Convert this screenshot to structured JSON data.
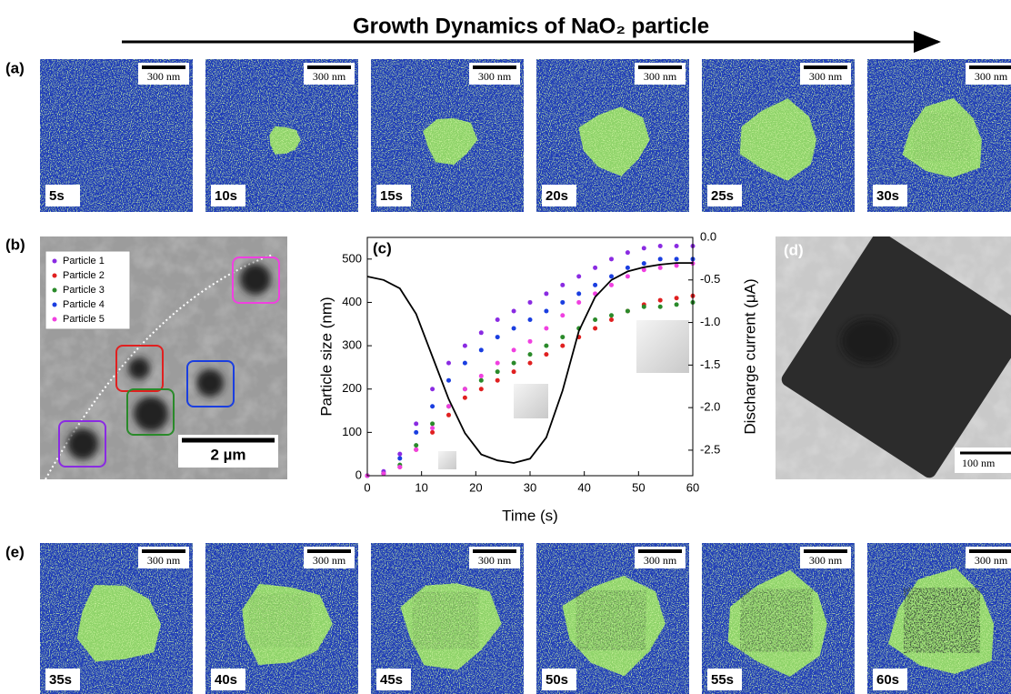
{
  "title": "Growth Dynamics of NaO₂ particle",
  "panels": {
    "a": {
      "label": "(a)",
      "frames": [
        {
          "time": "5s",
          "scale": "300 nm"
        },
        {
          "time": "10s",
          "scale": "300 nm"
        },
        {
          "time": "15s",
          "scale": "300 nm"
        },
        {
          "time": "20s",
          "scale": "300 nm"
        },
        {
          "time": "25s",
          "scale": "300 nm"
        },
        {
          "time": "30s",
          "scale": "300 nm"
        }
      ]
    },
    "b": {
      "label": "(b)",
      "scale": "2 µm"
    },
    "c": {
      "label": "(c)"
    },
    "d": {
      "label": "(d)",
      "scale": "100 nm"
    },
    "e": {
      "label": "(e)",
      "frames": [
        {
          "time": "35s",
          "scale": "300 nm"
        },
        {
          "time": "40s",
          "scale": "300 nm"
        },
        {
          "time": "45s",
          "scale": "300 nm"
        },
        {
          "time": "50s",
          "scale": "300 nm"
        },
        {
          "time": "55s",
          "scale": "300 nm"
        },
        {
          "time": "60s",
          "scale": "300 nm"
        }
      ]
    }
  },
  "chart_data": {
    "type": "scatter",
    "x_label": "Time (s)",
    "y_label": "Particle size (nm)",
    "y2_label": "Discharge current (μA)",
    "x": [
      0,
      3,
      6,
      9,
      12,
      15,
      18,
      21,
      24,
      27,
      30,
      33,
      36,
      39,
      42,
      45,
      48,
      51,
      54,
      57,
      60
    ],
    "series": [
      {
        "name": "Particle 1",
        "color": "#8a2be2",
        "values": [
          0,
          10,
          50,
          120,
          200,
          260,
          300,
          330,
          360,
          380,
          400,
          420,
          440,
          460,
          480,
          500,
          515,
          525,
          530,
          530,
          530
        ]
      },
      {
        "name": "Particle 2",
        "color": "#e02020",
        "values": [
          0,
          5,
          20,
          60,
          100,
          140,
          180,
          200,
          220,
          240,
          260,
          280,
          300,
          320,
          340,
          360,
          380,
          395,
          405,
          410,
          415
        ]
      },
      {
        "name": "Particle 3",
        "color": "#2a8a2a",
        "values": [
          0,
          5,
          25,
          70,
          120,
          160,
          200,
          220,
          240,
          260,
          280,
          300,
          320,
          340,
          360,
          370,
          380,
          390,
          390,
          395,
          400
        ]
      },
      {
        "name": "Particle 4",
        "color": "#1a3ee0",
        "values": [
          0,
          5,
          40,
          100,
          160,
          220,
          260,
          290,
          320,
          340,
          360,
          380,
          400,
          420,
          440,
          460,
          480,
          490,
          500,
          500,
          500
        ]
      },
      {
        "name": "Particle 5",
        "color": "#f040e0",
        "values": [
          0,
          5,
          20,
          60,
          110,
          160,
          200,
          230,
          260,
          290,
          310,
          340,
          370,
          400,
          420,
          440,
          460,
          475,
          480,
          485,
          490
        ]
      },
      {
        "type": "line",
        "axis": "y2",
        "color": "#000000",
        "values": [
          -0.46,
          -0.5,
          -0.6,
          -0.9,
          -1.4,
          -1.9,
          -2.3,
          -2.55,
          -2.62,
          -2.65,
          -2.6,
          -2.35,
          -1.8,
          -1.1,
          -0.7,
          -0.5,
          -0.4,
          -0.35,
          -0.32,
          -0.3,
          -0.3
        ]
      }
    ],
    "xlim": [
      0,
      60
    ],
    "xticks": [
      0,
      10,
      20,
      30,
      40,
      50,
      60
    ],
    "ylim": [
      0,
      550
    ],
    "yticks": [
      0,
      100,
      200,
      300,
      400,
      500
    ],
    "y2lim": [
      -2.8,
      0
    ],
    "y2ticks": [
      {
        "value": 0,
        "label": "0.0"
      },
      -0.5,
      {
        "value": -1,
        "label": "-1.0"
      },
      -1.5,
      {
        "value": -2,
        "label": "-2.0"
      },
      -2.5
    ]
  }
}
